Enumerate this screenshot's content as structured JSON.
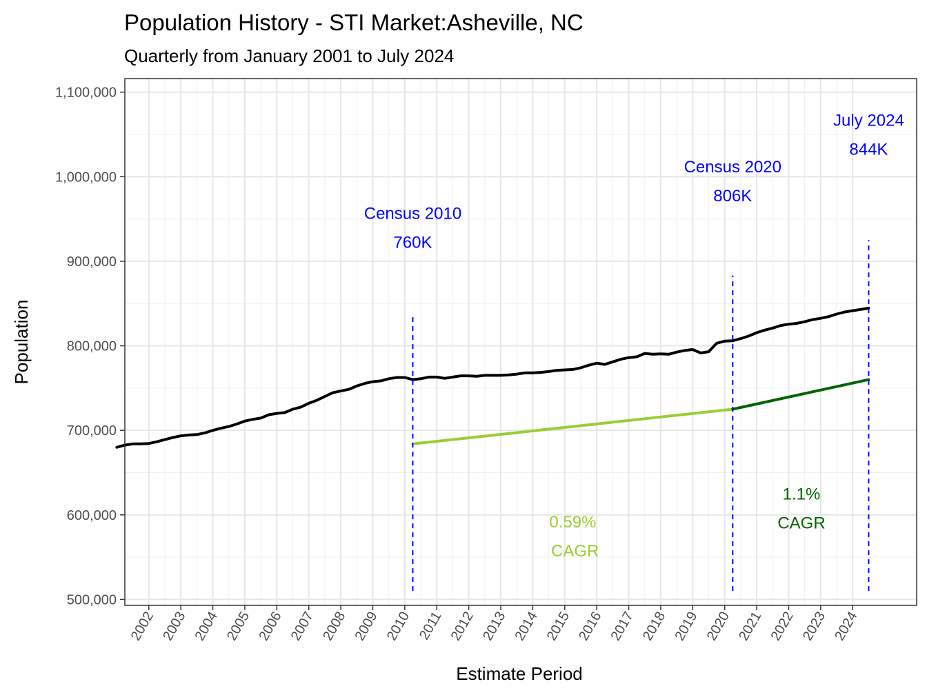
{
  "chart_data": {
    "type": "line",
    "title": "Population History - STI Market:Asheville, NC",
    "subtitle": "Quarterly from January 2001 to July 2024",
    "xlabel": "Estimate Period",
    "ylabel": "Population",
    "xlim": [
      2001.25,
      2026.0
    ],
    "ylim": [
      493000,
      1116000
    ],
    "yticks": [
      500000,
      600000,
      700000,
      800000,
      900000,
      1000000,
      1100000
    ],
    "ytick_labels": [
      "500,000",
      "600,000",
      "700,000",
      "800,000",
      "900,000",
      "1,000,000",
      "1,100,000"
    ],
    "xticks": [
      2002,
      2003,
      2004,
      2005,
      2006,
      2007,
      2008,
      2009,
      2010,
      2011,
      2012,
      2013,
      2014,
      2015,
      2016,
      2017,
      2018,
      2019,
      2020,
      2021,
      2022,
      2023,
      2024
    ],
    "xtick_labels": [
      "2002",
      "2003",
      "2004",
      "2005",
      "2006",
      "2007",
      "2008",
      "2009",
      "2010",
      "2011",
      "2012",
      "2013",
      "2014",
      "2015",
      "2016",
      "2017",
      "2018",
      "2019",
      "2020",
      "2021",
      "2022",
      "2023",
      "2024"
    ],
    "grid": true,
    "series": [
      {
        "color": "#000000",
        "points": [
          [
            2001.0,
            680000
          ],
          [
            2001.25,
            682500
          ],
          [
            2001.5,
            684000
          ],
          [
            2001.75,
            684000
          ],
          [
            2002.0,
            684500
          ],
          [
            2002.25,
            686500
          ],
          [
            2002.5,
            689000
          ],
          [
            2002.75,
            691500
          ],
          [
            2003.0,
            693500
          ],
          [
            2003.25,
            694500
          ],
          [
            2003.5,
            695000
          ],
          [
            2003.75,
            697000
          ],
          [
            2004.0,
            700000
          ],
          [
            2004.25,
            702500
          ],
          [
            2004.5,
            704500
          ],
          [
            2004.75,
            707500
          ],
          [
            2005.0,
            711000
          ],
          [
            2005.25,
            713000
          ],
          [
            2005.5,
            714500
          ],
          [
            2005.75,
            718500
          ],
          [
            2006.0,
            720000
          ],
          [
            2006.25,
            721000
          ],
          [
            2006.5,
            725000
          ],
          [
            2006.75,
            727500
          ],
          [
            2007.0,
            732000
          ],
          [
            2007.25,
            735500
          ],
          [
            2007.5,
            740000
          ],
          [
            2007.75,
            744500
          ],
          [
            2008.0,
            746500
          ],
          [
            2008.25,
            748500
          ],
          [
            2008.5,
            752500
          ],
          [
            2008.75,
            755500
          ],
          [
            2009.0,
            757500
          ],
          [
            2009.25,
            758500
          ],
          [
            2009.5,
            761000
          ],
          [
            2009.75,
            762500
          ],
          [
            2010.0,
            762500
          ],
          [
            2010.25,
            760000
          ],
          [
            2010.5,
            761000
          ],
          [
            2010.75,
            763000
          ],
          [
            2011.0,
            763000
          ],
          [
            2011.25,
            761500
          ],
          [
            2011.5,
            763000
          ],
          [
            2011.75,
            764500
          ],
          [
            2012.0,
            764500
          ],
          [
            2012.25,
            764000
          ],
          [
            2012.5,
            765000
          ],
          [
            2012.75,
            765000
          ],
          [
            2013.0,
            765000
          ],
          [
            2013.25,
            765500
          ],
          [
            2013.5,
            766500
          ],
          [
            2013.75,
            768000
          ],
          [
            2014.0,
            768000
          ],
          [
            2014.25,
            768500
          ],
          [
            2014.5,
            769500
          ],
          [
            2014.75,
            771000
          ],
          [
            2015.0,
            771500
          ],
          [
            2015.25,
            772000
          ],
          [
            2015.5,
            774000
          ],
          [
            2015.75,
            777000
          ],
          [
            2016.0,
            779500
          ],
          [
            2016.25,
            778000
          ],
          [
            2016.5,
            781000
          ],
          [
            2016.75,
            784000
          ],
          [
            2017.0,
            786000
          ],
          [
            2017.25,
            787000
          ],
          [
            2017.5,
            791000
          ],
          [
            2017.75,
            790000
          ],
          [
            2018.0,
            790500
          ],
          [
            2018.25,
            790000
          ],
          [
            2018.5,
            792500
          ],
          [
            2018.75,
            794500
          ],
          [
            2019.0,
            795500
          ],
          [
            2019.25,
            791500
          ],
          [
            2019.5,
            793000
          ],
          [
            2019.75,
            803000
          ],
          [
            2020.0,
            805500
          ],
          [
            2020.25,
            806000
          ],
          [
            2020.5,
            808500
          ],
          [
            2020.75,
            811500
          ],
          [
            2021.0,
            815500
          ],
          [
            2021.25,
            818500
          ],
          [
            2021.5,
            821000
          ],
          [
            2021.75,
            824000
          ],
          [
            2022.0,
            825500
          ],
          [
            2022.25,
            826500
          ],
          [
            2022.5,
            828500
          ],
          [
            2022.75,
            831000
          ],
          [
            2023.0,
            832500
          ],
          [
            2023.25,
            834500
          ],
          [
            2023.5,
            837500
          ],
          [
            2023.75,
            840000
          ],
          [
            2024.0,
            841500
          ],
          [
            2024.25,
            843000
          ],
          [
            2024.5,
            844500
          ]
        ]
      },
      {
        "color": "#9acd32",
        "points": [
          [
            2010.25,
            684000
          ],
          [
            2020.25,
            725000
          ]
        ]
      },
      {
        "color": "#006400",
        "points": [
          [
            2020.25,
            725000
          ],
          [
            2024.5,
            760000
          ]
        ]
      }
    ],
    "vlines": [
      {
        "x": 2010.25,
        "y0": 510000,
        "y1": 836000,
        "color": "#0000ff"
      },
      {
        "x": 2020.25,
        "y0": 510000,
        "y1": 883000,
        "color": "#0000ff"
      },
      {
        "x": 2024.5,
        "y0": 510000,
        "y1": 925000,
        "color": "#0000ff"
      }
    ],
    "annotations": [
      {
        "lines": [
          "Census 2010",
          "760K"
        ],
        "x": 2010.25,
        "y": 950000,
        "color": "#0000ff"
      },
      {
        "lines": [
          "Census 2020",
          "806K"
        ],
        "x": 2020.25,
        "y": 1005000,
        "color": "#0000ff"
      },
      {
        "lines": [
          "July 2024",
          "844K"
        ],
        "x": 2024.5,
        "y": 1060000,
        "color": "#0000ff"
      },
      {
        "lines": [
          "0.59%",
          " CAGR"
        ],
        "x": 2015.25,
        "y": 585000,
        "color": "#9acd32"
      },
      {
        "lines": [
          "1.1%",
          "CAGR"
        ],
        "x": 2022.4,
        "y": 618000,
        "color": "#006400"
      }
    ]
  }
}
